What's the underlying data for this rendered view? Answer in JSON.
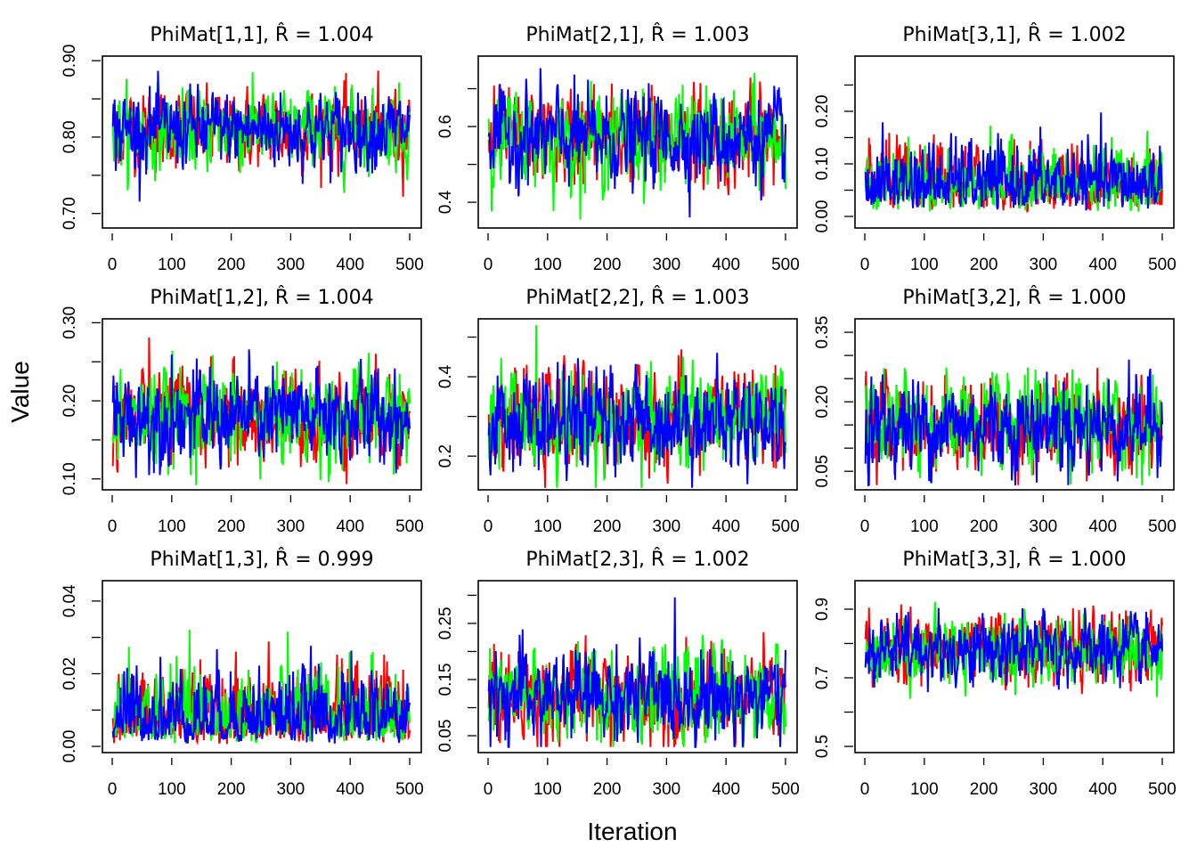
{
  "chart_data": {
    "type": "line",
    "xlabel": "Iteration",
    "ylabel": "Value",
    "grid": false,
    "legend": "none",
    "chain_colors": [
      "#ff0000",
      "#00ff00",
      "#0000ff"
    ],
    "iterations": 500,
    "xlim": [
      0,
      500
    ],
    "xticks": [
      0,
      100,
      200,
      300,
      400,
      500
    ],
    "panels": [
      {
        "label": "PhiMat[1,1]",
        "rhat": "1.004",
        "ylim": [
          0.681,
          0.906
        ],
        "yticks": [
          0.7,
          0.75,
          0.8,
          0.85,
          0.9
        ],
        "ylabels": [
          "0.70",
          "0.80",
          "0.90"
        ],
        "approx_mean": 0.81,
        "approx_sd": 0.025,
        "min": 0.69,
        "max": 0.9
      },
      {
        "label": "PhiMat[2,1]",
        "rhat": "1.003",
        "ylim": [
          0.332,
          0.786
        ],
        "yticks": [
          0.4,
          0.5,
          0.6,
          0.7
        ],
        "ylabels": [
          "0.4",
          "0.6"
        ],
        "approx_mean": 0.57,
        "approx_sd": 0.06,
        "min": 0.35,
        "max": 0.76
      },
      {
        "label": "PhiMat[3,1]",
        "rhat": "1.002",
        "ylim": [
          -0.022,
          0.305
        ],
        "yticks": [
          0.0,
          0.05,
          0.1,
          0.15,
          0.2,
          0.25
        ],
        "ylabels": [
          "0.00",
          "0.10",
          "0.20"
        ],
        "approx_mean": 0.06,
        "approx_sd": 0.04,
        "min": 0.0,
        "max": 0.29
      },
      {
        "label": "PhiMat[1,2]",
        "rhat": "1.004",
        "ylim": [
          0.086,
          0.305
        ],
        "yticks": [
          0.1,
          0.15,
          0.2,
          0.25,
          0.3
        ],
        "ylabels": [
          "0.10",
          "0.20",
          "0.30"
        ],
        "approx_mean": 0.18,
        "approx_sd": 0.03,
        "min": 0.09,
        "max": 0.3
      },
      {
        "label": "PhiMat[2,2]",
        "rhat": "1.003",
        "ylim": [
          0.115,
          0.546
        ],
        "yticks": [
          0.2,
          0.3,
          0.4,
          0.5
        ],
        "ylabels": [
          "0.2",
          "0.4"
        ],
        "approx_mean": 0.29,
        "approx_sd": 0.06,
        "min": 0.12,
        "max": 0.53
      },
      {
        "label": "PhiMat[3,2]",
        "rhat": "1.000",
        "ylim": [
          0.01,
          0.379
        ],
        "yticks": [
          0.05,
          0.1,
          0.15,
          0.2,
          0.25,
          0.3,
          0.35
        ],
        "ylabels": [
          "0.05",
          "0.20",
          "0.35"
        ],
        "approx_mean": 0.15,
        "approx_sd": 0.05,
        "min": 0.02,
        "max": 0.36
      },
      {
        "label": "PhiMat[1,3]",
        "rhat": "0.999",
        "ylim": [
          -0.0017,
          0.0456
        ],
        "yticks": [
          0.0,
          0.01,
          0.02,
          0.03,
          0.04
        ],
        "ylabels": [
          "0.00",
          "0.02",
          "0.04"
        ],
        "approx_mean": 0.008,
        "approx_sd": 0.007,
        "min": 0.0,
        "max": 0.045
      },
      {
        "label": "PhiMat[2,3]",
        "rhat": "1.002",
        "ylim": [
          0.02,
          0.326
        ],
        "yticks": [
          0.05,
          0.1,
          0.15,
          0.2,
          0.25,
          0.3
        ],
        "ylabels": [
          "0.05",
          "0.15",
          "0.25"
        ],
        "approx_mean": 0.12,
        "approx_sd": 0.04,
        "min": 0.03,
        "max": 0.31
      },
      {
        "label": "PhiMat[3,3]",
        "rhat": "1.000",
        "ylim": [
          0.482,
          0.983
        ],
        "yticks": [
          0.5,
          0.6,
          0.7,
          0.8,
          0.9
        ],
        "ylabels": [
          "0.5",
          "0.7",
          "0.9"
        ],
        "approx_mean": 0.78,
        "approx_sd": 0.05,
        "min": 0.5,
        "max": 0.96
      }
    ]
  }
}
